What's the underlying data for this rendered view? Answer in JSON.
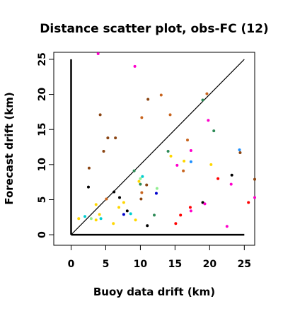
{
  "chart_data": {
    "type": "scatter",
    "title": "Distance scatter plot, obs-FC (12)",
    "xlabel": "Buoy data drift (km)",
    "ylabel": "Forecast drift (km)",
    "xlim": [
      -2.5,
      26.5
    ],
    "ylim": [
      -1.5,
      26.0
    ],
    "xticks": [
      0,
      5,
      10,
      15,
      20,
      25
    ],
    "yticks": [
      0,
      5,
      10,
      15,
      20,
      25
    ],
    "grid": false,
    "reference_line": {
      "from": [
        0,
        0
      ],
      "to": [
        25,
        25
      ],
      "color": "#000000"
    },
    "axes_lines": {
      "x_from": [
        0,
        0
      ],
      "x_to": [
        25,
        0
      ],
      "y_from": [
        0,
        0
      ],
      "y_to": [
        0,
        25
      ],
      "color": "#000000"
    },
    "points": [
      {
        "x": 3.9,
        "y": 25.8,
        "color": "#ff00cc"
      },
      {
        "x": 9.2,
        "y": 24.0,
        "color": "#ff00cc"
      },
      {
        "x": 13.0,
        "y": 19.9,
        "color": "#c8641e"
      },
      {
        "x": 11.1,
        "y": 19.3,
        "color": "#8b4513"
      },
      {
        "x": 19.6,
        "y": 20.1,
        "color": "#c8641e"
      },
      {
        "x": 19.0,
        "y": 19.2,
        "color": "#2e8b57"
      },
      {
        "x": 4.2,
        "y": 17.1,
        "color": "#8b4513"
      },
      {
        "x": 10.2,
        "y": 16.7,
        "color": "#c8641e"
      },
      {
        "x": 14.3,
        "y": 17.1,
        "color": "#c8641e"
      },
      {
        "x": 19.8,
        "y": 16.3,
        "color": "#ff00cc"
      },
      {
        "x": 20.6,
        "y": 14.8,
        "color": "#2e8b57"
      },
      {
        "x": 5.3,
        "y": 13.8,
        "color": "#8b4513"
      },
      {
        "x": 6.4,
        "y": 13.8,
        "color": "#8b4513"
      },
      {
        "x": 16.8,
        "y": 13.5,
        "color": "#c8641e"
      },
      {
        "x": 4.7,
        "y": 11.9,
        "color": "#8b4513"
      },
      {
        "x": 14.0,
        "y": 11.9,
        "color": "#2e8b57"
      },
      {
        "x": 17.3,
        "y": 12.0,
        "color": "#ff00cc"
      },
      {
        "x": 14.4,
        "y": 11.2,
        "color": "#ffd700"
      },
      {
        "x": 24.3,
        "y": 12.1,
        "color": "#1e90ff"
      },
      {
        "x": 24.4,
        "y": 11.7,
        "color": "#8b4513"
      },
      {
        "x": 16.3,
        "y": 10.5,
        "color": "#ffd700"
      },
      {
        "x": 17.3,
        "y": 10.4,
        "color": "#1e90ff"
      },
      {
        "x": 15.3,
        "y": 9.9,
        "color": "#ff00cc"
      },
      {
        "x": 16.2,
        "y": 9.1,
        "color": "#c8641e"
      },
      {
        "x": 20.2,
        "y": 10.0,
        "color": "#ffd700"
      },
      {
        "x": 2.6,
        "y": 9.5,
        "color": "#8b4513"
      },
      {
        "x": 9.1,
        "y": 9.1,
        "color": "#2e8b57"
      },
      {
        "x": 23.2,
        "y": 8.5,
        "color": "#000000"
      },
      {
        "x": 26.5,
        "y": 7.9,
        "color": "#8b4513"
      },
      {
        "x": 10.0,
        "y": 8.0,
        "color": "#90ee90"
      },
      {
        "x": 10.3,
        "y": 8.3,
        "color": "#00ced1"
      },
      {
        "x": 21.2,
        "y": 8.0,
        "color": "#ff0000"
      },
      {
        "x": 9.8,
        "y": 7.6,
        "color": "#ffd700"
      },
      {
        "x": 10.0,
        "y": 7.2,
        "color": "#2e8b57"
      },
      {
        "x": 10.9,
        "y": 7.1,
        "color": "#8b4513"
      },
      {
        "x": 23.1,
        "y": 7.2,
        "color": "#ff00cc"
      },
      {
        "x": 2.5,
        "y": 6.8,
        "color": "#000000"
      },
      {
        "x": 12.4,
        "y": 6.6,
        "color": "#90ee90"
      },
      {
        "x": 6.2,
        "y": 6.1,
        "color": "#000000"
      },
      {
        "x": 10.2,
        "y": 6.0,
        "color": "#c8641e"
      },
      {
        "x": 12.3,
        "y": 5.9,
        "color": "#0000cd"
      },
      {
        "x": 7.0,
        "y": 5.3,
        "color": "#000000"
      },
      {
        "x": 10.1,
        "y": 5.1,
        "color": "#8b4513"
      },
      {
        "x": 5.1,
        "y": 5.1,
        "color": "#c8641e"
      },
      {
        "x": 7.6,
        "y": 4.6,
        "color": "#ffd700"
      },
      {
        "x": 19.0,
        "y": 4.6,
        "color": "#000000"
      },
      {
        "x": 19.3,
        "y": 4.4,
        "color": "#ff00cc"
      },
      {
        "x": 25.6,
        "y": 4.6,
        "color": "#ff0000"
      },
      {
        "x": 26.5,
        "y": 5.3,
        "color": "#ff00cc"
      },
      {
        "x": 3.6,
        "y": 4.3,
        "color": "#ffd700"
      },
      {
        "x": 6.9,
        "y": 3.9,
        "color": "#ffd700"
      },
      {
        "x": 8.1,
        "y": 3.4,
        "color": "#000000"
      },
      {
        "x": 7.6,
        "y": 2.9,
        "color": "#0000cd"
      },
      {
        "x": 8.6,
        "y": 3.0,
        "color": "#00ced1"
      },
      {
        "x": 17.2,
        "y": 3.9,
        "color": "#ff0000"
      },
      {
        "x": 17.3,
        "y": 3.4,
        "color": "#ff00cc"
      },
      {
        "x": 4.1,
        "y": 2.9,
        "color": "#ffd700"
      },
      {
        "x": 2.0,
        "y": 2.6,
        "color": "#00ced1"
      },
      {
        "x": 12.0,
        "y": 2.8,
        "color": "#2e8b57"
      },
      {
        "x": 15.8,
        "y": 2.8,
        "color": "#ff0000"
      },
      {
        "x": 1.1,
        "y": 2.3,
        "color": "#ffd700"
      },
      {
        "x": 3.6,
        "y": 2.1,
        "color": "#ffd700"
      },
      {
        "x": 4.3,
        "y": 2.3,
        "color": "#00ced1"
      },
      {
        "x": 2.9,
        "y": 2.3,
        "color": "#90ee90"
      },
      {
        "x": 9.3,
        "y": 2.1,
        "color": "#ffd700"
      },
      {
        "x": 6.1,
        "y": 1.6,
        "color": "#ffd700"
      },
      {
        "x": 11.0,
        "y": 1.3,
        "color": "#000000"
      },
      {
        "x": 15.1,
        "y": 1.6,
        "color": "#ff0000"
      },
      {
        "x": 22.5,
        "y": 1.2,
        "color": "#ff00cc"
      }
    ]
  }
}
